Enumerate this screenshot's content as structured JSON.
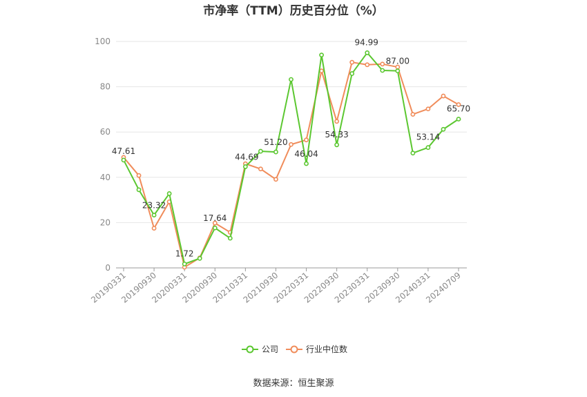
{
  "chart_data": {
    "type": "line",
    "title": "市净率（TTM）历史百分位（%）",
    "xlabel": "",
    "ylabel": "",
    "ylim": [
      0,
      100
    ],
    "yticks": [
      0,
      20,
      40,
      60,
      80,
      100
    ],
    "grid": true,
    "legend_position": "bottom",
    "x_tick_labels": [
      "20190331",
      "20190930",
      "20200331",
      "20200930",
      "20210331",
      "20210930",
      "20220331",
      "20220930",
      "20230331",
      "20230930",
      "20240331",
      "20240709"
    ],
    "x": [
      "20190331",
      "20190630",
      "20190930",
      "20191231",
      "20200331",
      "20200630",
      "20200930",
      "20201231",
      "20210331",
      "20210630",
      "20210930",
      "20211231",
      "20220331",
      "20220630",
      "20220930",
      "20221231",
      "20230331",
      "20230630",
      "20230930",
      "20231231",
      "20240331",
      "20240630",
      "20240709"
    ],
    "series": [
      {
        "name": "公司",
        "color": "#5bc730",
        "values": [
          47.61,
          34.5,
          23.32,
          32.8,
          1.72,
          4.2,
          17.64,
          13.1,
          44.69,
          51.5,
          51.2,
          83.2,
          46.04,
          94.0,
          54.33,
          85.8,
          94.99,
          87.2,
          87.0,
          50.7,
          53.14,
          61.2,
          65.7
        ]
      },
      {
        "name": "行业中位数",
        "color": "#f08c5a",
        "values": [
          48.8,
          40.8,
          17.5,
          29.2,
          0.3,
          4.4,
          19.8,
          15.7,
          46.0,
          43.7,
          39.1,
          54.5,
          56.5,
          87.0,
          64.7,
          90.8,
          89.7,
          90.0,
          88.7,
          67.8,
          70.2,
          75.9,
          72.1
        ]
      }
    ],
    "data_labels": [
      {
        "series": 0,
        "index": 0,
        "text": "47.61"
      },
      {
        "series": 0,
        "index": 2,
        "text": "23.32"
      },
      {
        "series": 0,
        "index": 4,
        "text": "1.72"
      },
      {
        "series": 0,
        "index": 6,
        "text": "17.64"
      },
      {
        "series": 0,
        "index": 8,
        "text": "44.69"
      },
      {
        "series": 0,
        "index": 10,
        "text": "51.20"
      },
      {
        "series": 0,
        "index": 12,
        "text": "46.04"
      },
      {
        "series": 0,
        "index": 14,
        "text": "54.33"
      },
      {
        "series": 0,
        "index": 16,
        "text": "94.99"
      },
      {
        "series": 0,
        "index": 18,
        "text": "87.00"
      },
      {
        "series": 0,
        "index": 20,
        "text": "53.14"
      },
      {
        "series": 0,
        "index": 22,
        "text": "65.70"
      }
    ],
    "source": "数据来源：恒生聚源"
  }
}
